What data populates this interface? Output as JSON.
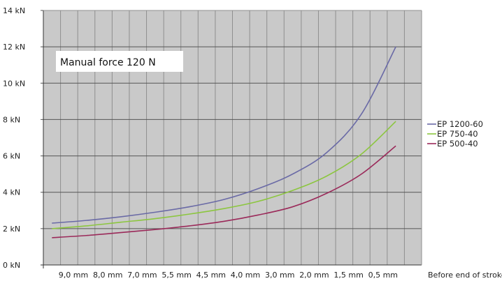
{
  "chart_data": {
    "type": "line",
    "title": "",
    "xlabel": "Before end of stroke",
    "ylabel": "",
    "annotation": "Manual force 120 N",
    "x_tick_labels": [
      "9,0 mm",
      "8,0 mm",
      "7,0 mm",
      "5,5 mm",
      "4,5 mm",
      "4,0 mm",
      "3,0 mm",
      "2,0 mm",
      "1,5 mm",
      "0,5 mm"
    ],
    "y_ticks": [
      {
        "value": 0,
        "label": "0 kN"
      },
      {
        "value": 2,
        "label": "2 kN"
      },
      {
        "value": 4,
        "label": "4 kN"
      },
      {
        "value": 6,
        "label": "6 kN"
      },
      {
        "value": 8,
        "label": "8 kN"
      },
      {
        "value": 10,
        "label": "10 kN"
      },
      {
        "value": 12,
        "label": "12 kN"
      },
      {
        "value": 14,
        "label": "14 kN"
      }
    ],
    "ylim": [
      0,
      14
    ],
    "xlim": [
      0,
      21
    ],
    "grid": true,
    "legend_position": "right",
    "series": [
      {
        "name": "EP 1200-60",
        "color": "#6a6aa6",
        "x": [
          0,
          2,
          4,
          6,
          8,
          10,
          12,
          14,
          16,
          18,
          20
        ],
        "y": [
          2.3,
          2.45,
          2.65,
          2.9,
          3.2,
          3.6,
          4.2,
          5.0,
          6.2,
          8.3,
          12.0
        ]
      },
      {
        "name": "EP 750-40",
        "color": "#8cc63f",
        "x": [
          0,
          2,
          4,
          6,
          8,
          10,
          12,
          14,
          16,
          18,
          20
        ],
        "y": [
          2.0,
          2.15,
          2.35,
          2.55,
          2.8,
          3.1,
          3.5,
          4.1,
          4.9,
          6.1,
          7.9
        ]
      },
      {
        "name": "EP 500-40",
        "color": "#9b2a5a",
        "x": [
          0,
          2,
          4,
          6,
          8,
          10,
          12,
          14,
          16,
          18,
          20
        ],
        "y": [
          1.5,
          1.62,
          1.78,
          1.95,
          2.15,
          2.4,
          2.75,
          3.2,
          3.95,
          5.0,
          6.55
        ]
      }
    ]
  }
}
